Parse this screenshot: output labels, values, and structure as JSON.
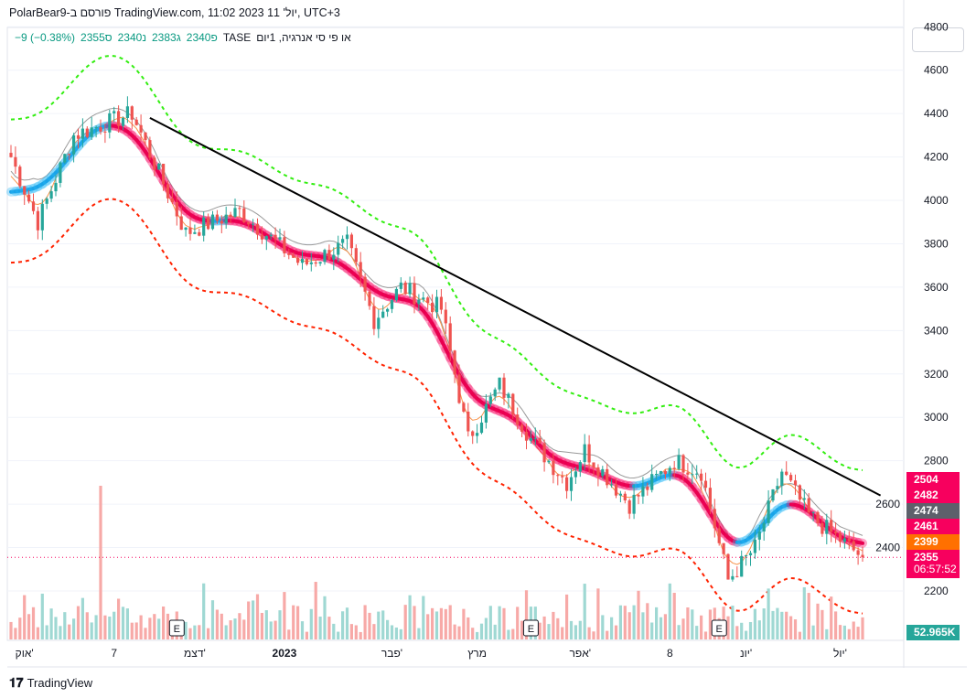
{
  "header": {
    "title": "PolarBear9-פורסם ב TradingView.com, 11:02 2023 יול' 11, UTC+3"
  },
  "legend": {
    "symbol": "או פי סי אנרגיה, 1יום",
    "exchange": "TASE",
    "open": "פ2340",
    "high": "ג2383",
    "low": "נ2340",
    "close": "ס2355",
    "change": "−9 (−0.38%)"
  },
  "price_tags": [
    {
      "value": "2504",
      "color": "#f7005e"
    },
    {
      "value": "2482",
      "color": "#f7005e"
    },
    {
      "value": "2474",
      "color": "#5d606b"
    },
    {
      "value": "2461",
      "color": "#f7005e"
    },
    {
      "value": "2399",
      "color": "#ff7000"
    },
    {
      "value": "2355",
      "color": "#f7005e",
      "countdown": "06:57:52"
    }
  ],
  "volume_tag": {
    "value": "52.965K",
    "color": "#26a69a"
  },
  "brand": "TradingView",
  "chart_data": {
    "type": "candlestick",
    "yticks": [
      "4800",
      "4600",
      "4400",
      "4200",
      "4000",
      "3800",
      "3600",
      "3400",
      "3200",
      "3000",
      "2800",
      "2600",
      "2400",
      "2200"
    ],
    "ylim": [
      2200,
      4800
    ],
    "xticks": [
      {
        "bar": 3,
        "label": "אוק'"
      },
      {
        "bar": 23,
        "label": "7"
      },
      {
        "bar": 41,
        "label": "דצמ'"
      },
      {
        "bar": 61,
        "label": "2023"
      },
      {
        "bar": 85,
        "label": "פבר'"
      },
      {
        "bar": 104,
        "label": "מרץ"
      },
      {
        "bar": 127,
        "label": "אפר'"
      },
      {
        "bar": 147,
        "label": "8"
      },
      {
        "bar": 164,
        "label": "יונ'"
      },
      {
        "bar": 185,
        "label": "יול'"
      }
    ],
    "close_path": [
      [
        0,
        4200
      ],
      [
        6,
        3900
      ],
      [
        14,
        4300
      ],
      [
        27,
        4400
      ],
      [
        39,
        3850
      ],
      [
        51,
        3950
      ],
      [
        65,
        3700
      ],
      [
        75,
        3800
      ],
      [
        81,
        3450
      ],
      [
        87,
        3600
      ],
      [
        96,
        3500
      ],
      [
        102,
        2900
      ],
      [
        109,
        3150
      ],
      [
        116,
        2900
      ],
      [
        124,
        2700
      ],
      [
        128,
        2850
      ],
      [
        138,
        2600
      ],
      [
        148,
        2800
      ],
      [
        154,
        2750
      ],
      [
        160,
        2250
      ],
      [
        166,
        2400
      ],
      [
        172,
        2750
      ],
      [
        178,
        2550
      ],
      [
        190,
        2355
      ]
    ],
    "trendline": {
      "from": [
        31,
        4380
      ],
      "to": [
        194,
        2640
      ]
    },
    "earnings_bars": [
      37,
      116,
      158
    ],
    "last_price": 2355,
    "volume_spike_bar": 20
  }
}
